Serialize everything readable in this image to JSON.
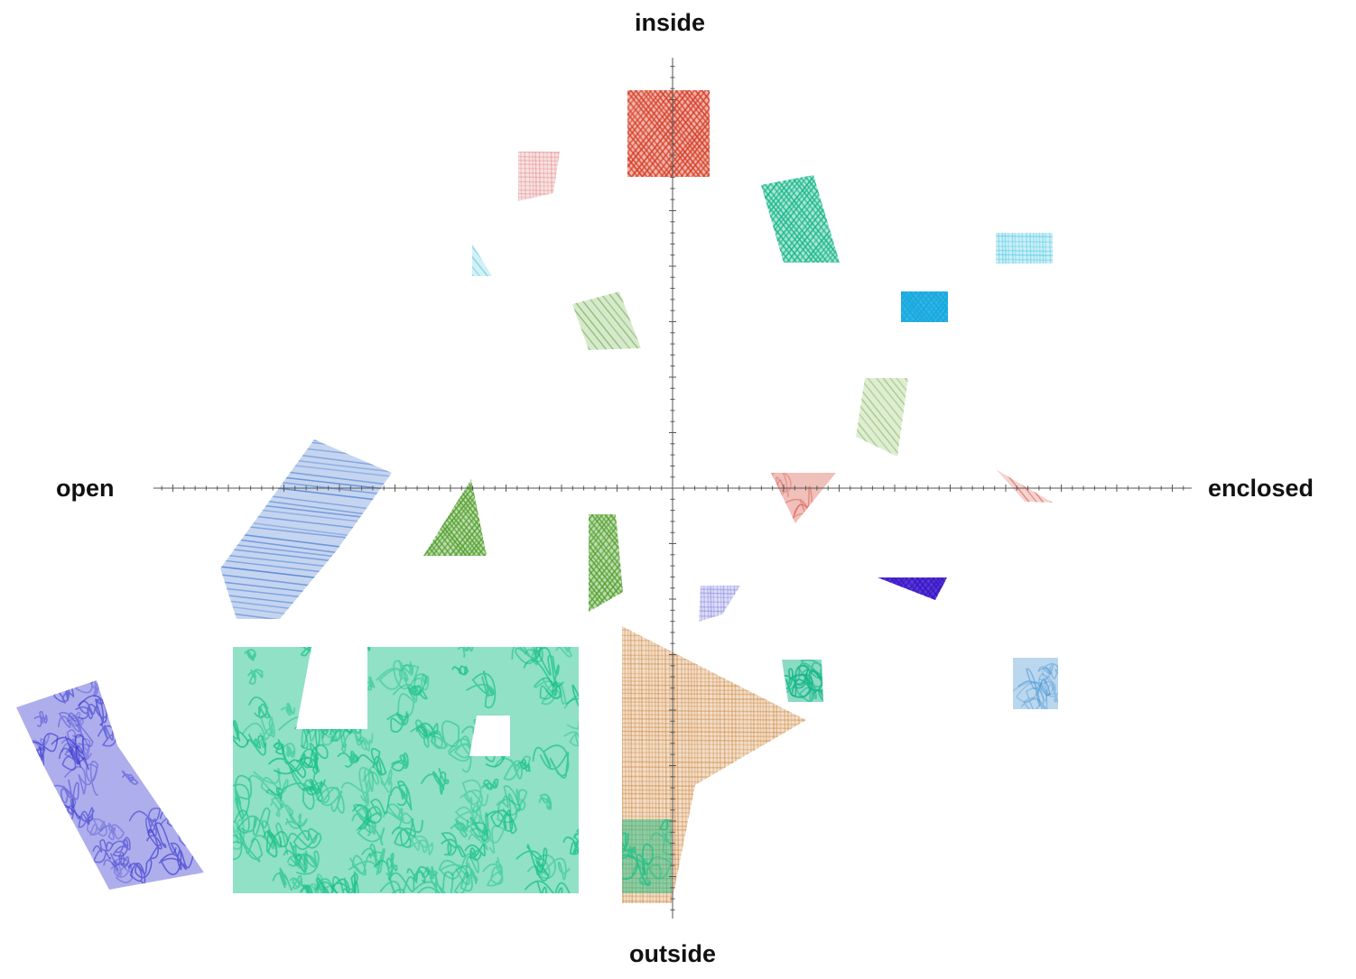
{
  "axes": {
    "top_label": "inside",
    "bottom_label": "outside",
    "left_label": "open",
    "right_label": "enclosed"
  },
  "hatch": {
    "types": [
      "cross",
      "diag",
      "horiz",
      "scribble",
      "grid"
    ]
  },
  "patches": [
    {
      "name": "patch-red-top",
      "color": "#d63a22",
      "fill": 0.9,
      "hatch": "cross"
    },
    {
      "name": "patch-pink-upper-left",
      "color": "#e07a7a",
      "fill": 0.35,
      "hatch": "grid"
    },
    {
      "name": "patch-teal-upper-right",
      "color": "#12b586",
      "fill": 0.85,
      "hatch": "cross"
    },
    {
      "name": "patch-cyan-light",
      "color": "#38c4e0",
      "fill": 0.45,
      "hatch": "grid"
    },
    {
      "name": "patch-cyan-solid",
      "color": "#14a8de",
      "fill": 1.0,
      "hatch": "cross"
    },
    {
      "name": "patch-cyan-sliver",
      "color": "#3cc0d8",
      "fill": 0.4,
      "hatch": "diag"
    },
    {
      "name": "patch-green-diag",
      "color": "#5ea436",
      "fill": 0.45,
      "hatch": "diag"
    },
    {
      "name": "patch-green-light-right",
      "color": "#8cbd63",
      "fill": 0.55,
      "hatch": "diag"
    },
    {
      "name": "patch-red-tri-right",
      "color": "#d9574a",
      "fill": 0.5,
      "hatch": "scribble"
    },
    {
      "name": "patch-red-sliver-far-right",
      "color": "#d9574a",
      "fill": 0.5,
      "hatch": "diag"
    },
    {
      "name": "patch-blue-stripes",
      "color": "#2a66c8",
      "fill": 0.55,
      "hatch": "horiz"
    },
    {
      "name": "patch-green-triangle",
      "color": "#4e9e28",
      "fill": 0.85,
      "hatch": "cross"
    },
    {
      "name": "patch-green-narrow",
      "color": "#4e9e28",
      "fill": 0.85,
      "hatch": "cross"
    },
    {
      "name": "patch-violet-small",
      "color": "#7a7ae0",
      "fill": 0.45,
      "hatch": "grid"
    },
    {
      "name": "patch-indigo-wedge",
      "color": "#3a17c8",
      "fill": 1.0,
      "hatch": "cross"
    },
    {
      "name": "patch-teal-small",
      "color": "#12b586",
      "fill": 0.85,
      "hatch": "scribble"
    },
    {
      "name": "patch-blue-scribble-small",
      "color": "#3a8ad0",
      "fill": 0.4,
      "hatch": "scribble"
    },
    {
      "name": "patch-orange-large",
      "color": "#cf8a43",
      "fill": 0.55,
      "hatch": "grid"
    },
    {
      "name": "patch-teal-large",
      "color": "#16c086",
      "fill": 0.8,
      "hatch": "scribble"
    },
    {
      "name": "patch-purple-scribble",
      "color": "#3c3ad0",
      "fill": 0.6,
      "hatch": "scribble"
    }
  ]
}
